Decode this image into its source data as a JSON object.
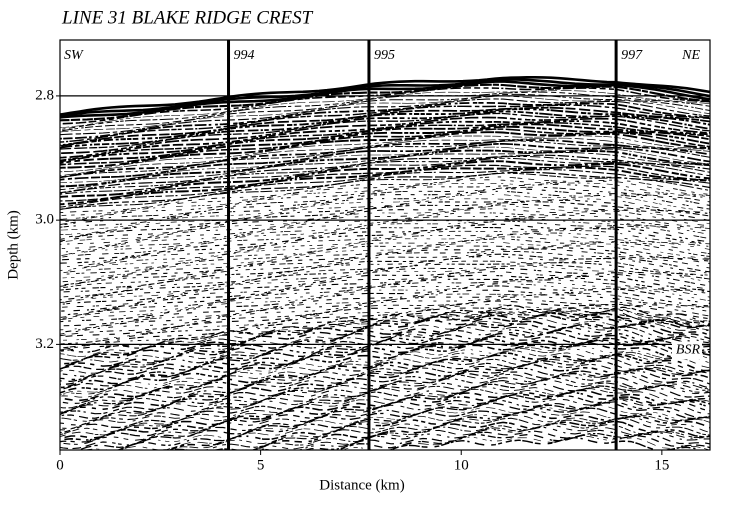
{
  "chart_data": {
    "type": "seismic",
    "title": "LINE 31 BLAKE RIDGE CREST",
    "x_label": "Distance (km)",
    "y_label": "Depth (km)",
    "xlim": [
      0,
      16.2
    ],
    "ylim": [
      2.71,
      3.37
    ],
    "xticks": [
      0,
      5,
      10,
      15
    ],
    "yticks": [
      2.8,
      {
        "value": 3.0,
        "label": "3.0"
      },
      3.2
    ],
    "grid": true,
    "sites": [
      {
        "label": "994",
        "x": 4.2
      },
      {
        "label": "995",
        "x": 7.7
      },
      {
        "label": "997",
        "x": 13.86
      }
    ],
    "annotations": [
      "SW",
      "NE",
      "BSR"
    ]
  }
}
